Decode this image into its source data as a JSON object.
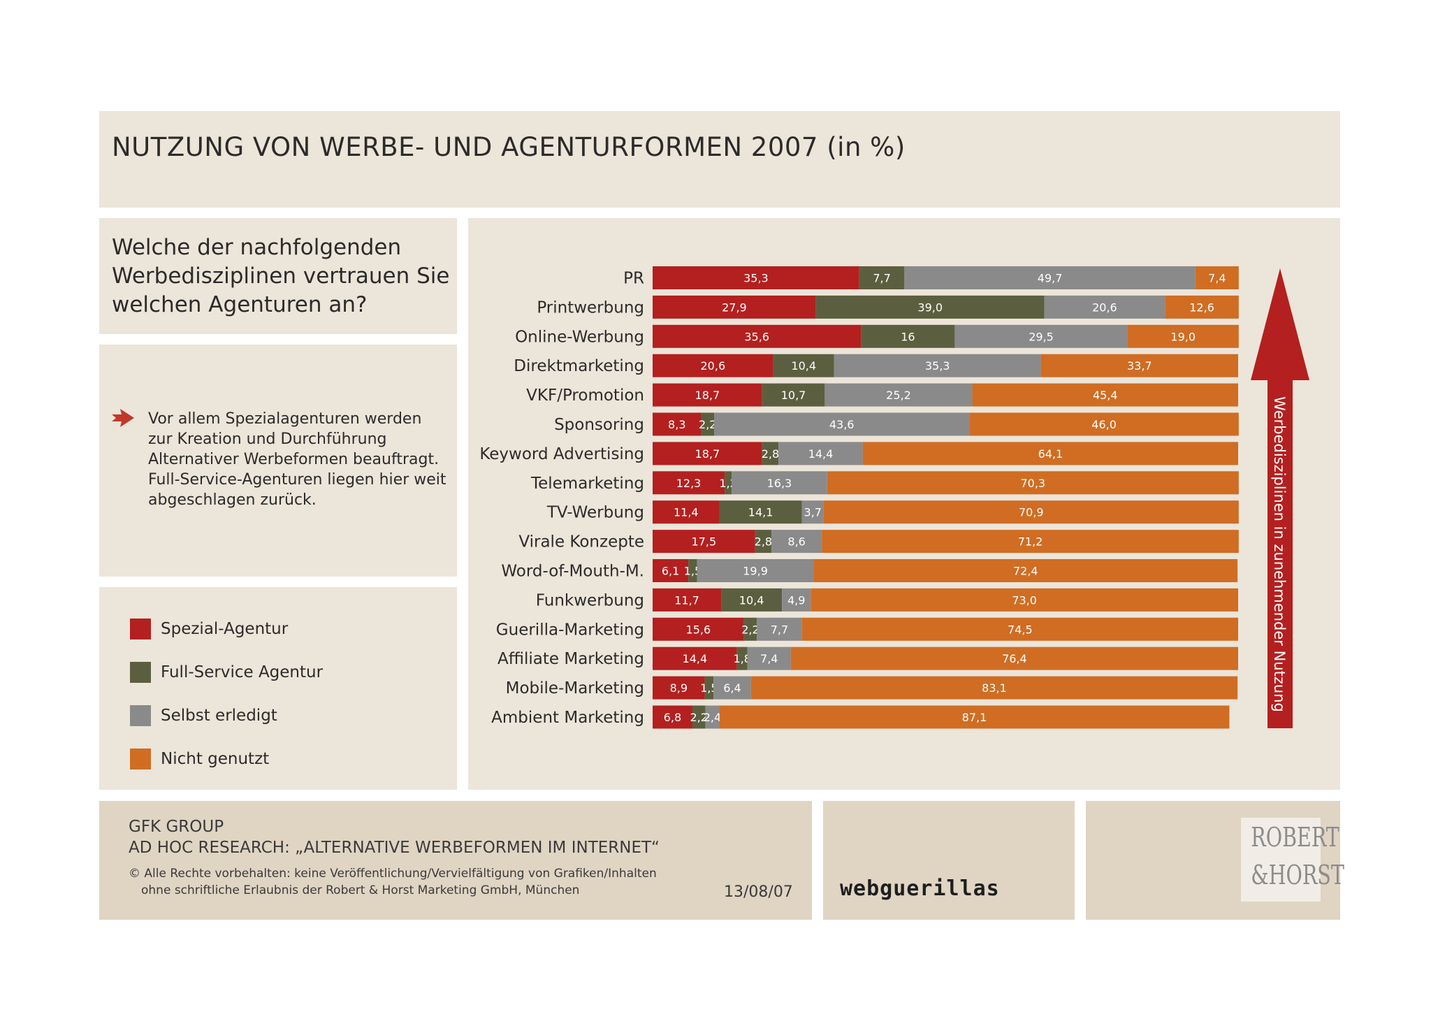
{
  "header": {
    "title": "NUTZUNG VON WERBE- UND AGENTURFORMEN 2007 (in %)"
  },
  "question": {
    "text": "Welche der nachfolgenden Werbedisziplinen vertrauen Sie welchen Agenturen an?"
  },
  "note": {
    "text": "Vor allem Spezialagenturen werden zur Kreation und Durchführung Alternativer Werbeformen beauftragt. Full-Service-Agenturen liegen hier weit abgeschlagen zurück."
  },
  "legend": {
    "items": [
      {
        "label": "Spezial-Agentur",
        "color": "#b3201f"
      },
      {
        "label": "Full-Service Agentur",
        "color": "#5c5f3f"
      },
      {
        "label": "Selbst erledigt",
        "color": "#8a8a8a"
      },
      {
        "label": "Nicht genutzt",
        "color": "#d06d23"
      }
    ]
  },
  "chart_data": {
    "type": "bar",
    "orientation": "horizontal",
    "stacked": true,
    "categories": [
      "PR",
      "Printwerbung",
      "Online-Werbung",
      "Direktmarketing",
      "VKF/Promotion",
      "Sponsoring",
      "Keyword Advertising",
      "Telemarketing",
      "TV-Werbung",
      "Virale Konzepte",
      "Word-of-Mouth-M.",
      "Funkwerbung",
      "Guerilla-Marketing",
      "Affiliate Marketing",
      "Mobile-Marketing",
      "Ambient Marketing"
    ],
    "series": [
      {
        "name": "Spezial-Agentur",
        "color": "#b3201f",
        "values": [
          35.3,
          27.9,
          35.6,
          20.6,
          18.7,
          8.3,
          18.7,
          12.3,
          11.4,
          17.5,
          6.1,
          11.7,
          15.6,
          14.4,
          8.9,
          6.8
        ],
        "labels": [
          "35,3",
          "27,9",
          "35,6",
          "20,6",
          "18,7",
          "8,3",
          "18,7",
          "12,3",
          "11,4",
          "17,5",
          "6,1",
          "11,7",
          "15,6",
          "14,4",
          "8,9",
          "6,8"
        ]
      },
      {
        "name": "Full-Service Agentur",
        "color": "#5c5f3f",
        "values": [
          7.7,
          39.0,
          16,
          10.4,
          10.7,
          2.2,
          2.8,
          1.2,
          14.1,
          2.8,
          1.5,
          10.4,
          2.2,
          1.8,
          1.5,
          2.2
        ],
        "labels": [
          "7,7",
          "39,0",
          "16",
          "10,4",
          "10,7",
          "2,2",
          "2,8",
          "1,2",
          "14,1",
          "2,8",
          "1,5",
          "10,4",
          "2,2",
          "1,8",
          "1,5",
          "2,2"
        ]
      },
      {
        "name": "Selbst erledigt",
        "color": "#8a8a8a",
        "values": [
          49.7,
          20.6,
          29.5,
          35.3,
          25.2,
          43.6,
          14.4,
          16.3,
          3.7,
          8.6,
          19.9,
          4.9,
          7.7,
          7.4,
          6.4,
          2.4
        ],
        "labels": [
          "49,7",
          "20,6",
          "29,5",
          "35,3",
          "25,2",
          "43,6",
          "14,4",
          "16,3",
          "3,7",
          "8,6",
          "19,9",
          "4,9",
          "7,7",
          "7,4",
          "6,4",
          "2,4"
        ]
      },
      {
        "name": "Nicht genutzt",
        "color": "#d06d23",
        "values": [
          7.4,
          12.6,
          19.0,
          33.7,
          45.4,
          46.0,
          64.1,
          70.3,
          70.9,
          71.2,
          72.4,
          73.0,
          74.5,
          76.4,
          83.1,
          87.1
        ],
        "labels": [
          "7,4",
          "12,6",
          "19,0",
          "33,7",
          "45,4",
          "46,0",
          "64,1",
          "70,3",
          "70,9",
          "71,2",
          "72,4",
          "73,0",
          "74,5",
          "76,4",
          "83,1",
          "87,1"
        ]
      }
    ],
    "xlim": [
      0,
      100
    ],
    "grid": false,
    "legend": "left",
    "annotation": {
      "text": "Werbedisziplinen in zunehmender Nutzung",
      "color": "#b3201f"
    }
  },
  "footer": {
    "source_line1": "GFK GROUP",
    "source_line2": "AD HOC RESEARCH: „ALTERNATIVE WERBEFORMEN IM INTERNET“",
    "copyright_line1": "© Alle Rechte vorbehalten: keine Veröffentlichung/Vervielfältigung von Grafiken/Inhalten",
    "copyright_line2": "ohne schriftliche Erlaubnis der Robert & Horst Marketing GmbH, München",
    "date": "13/08/07",
    "brand": "webguerillas",
    "logo_line1": "ROBERT",
    "logo_line2": "&HORST"
  }
}
